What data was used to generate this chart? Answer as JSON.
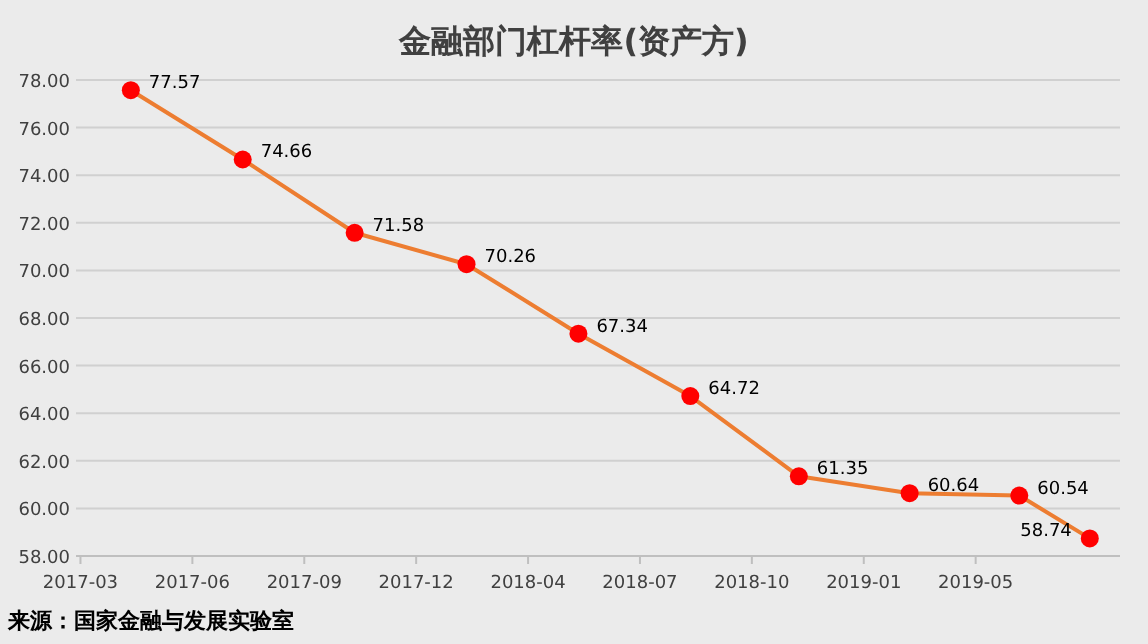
{
  "chart_data": {
    "type": "line",
    "title": "金融部门杠杆率(资产方)",
    "annotations": [
      "来源：国家金融与发展实验室"
    ],
    "x": [
      "2017-04-15",
      "2017-07-24",
      "2017-11-01",
      "2018-02-09",
      "2018-05-20",
      "2018-08-28",
      "2018-12-03",
      "2019-03-12",
      "2019-06-18",
      "2019-08-20"
    ],
    "series": [
      {
        "color": "#ed7d31",
        "values": [
          77.57,
          74.66,
          71.58,
          70.26,
          67.34,
          64.72,
          61.35,
          60.64,
          60.54,
          58.74
        ]
      }
    ],
    "xlim": [
      "2017-02-25",
      "2019-09-16"
    ],
    "xticks": [
      {
        "value": "2017-03-01",
        "label": "2017-03"
      },
      {
        "value": "2017-06-09",
        "label": "2017-06"
      },
      {
        "value": "2017-09-17",
        "label": "2017-09"
      },
      {
        "value": "2017-12-26",
        "label": "2017-12"
      },
      {
        "value": "2018-04-05",
        "label": "2018-04"
      },
      {
        "value": "2018-07-14",
        "label": "2018-07"
      },
      {
        "value": "2018-10-22",
        "label": "2018-10"
      },
      {
        "value": "2019-01-30",
        "label": "2019-01"
      },
      {
        "value": "2019-05-10",
        "label": "2019-05"
      }
    ],
    "ylim": [
      58,
      78
    ],
    "yticks": [
      {
        "value": 58,
        "label": "58.00"
      },
      {
        "value": 60,
        "label": "60.00"
      },
      {
        "value": 62,
        "label": "62.00"
      },
      {
        "value": 64,
        "label": "64.00"
      },
      {
        "value": 66,
        "label": "66.00"
      },
      {
        "value": 68,
        "label": "68.00"
      },
      {
        "value": 70,
        "label": "70.00"
      },
      {
        "value": 72,
        "label": "72.00"
      },
      {
        "value": 74,
        "label": "74.00"
      },
      {
        "value": 76,
        "label": "76.00"
      },
      {
        "value": 78,
        "label": "78.00"
      }
    ],
    "grid": "y",
    "marker": "circle",
    "line_style": "solid",
    "data_labels": true
  }
}
